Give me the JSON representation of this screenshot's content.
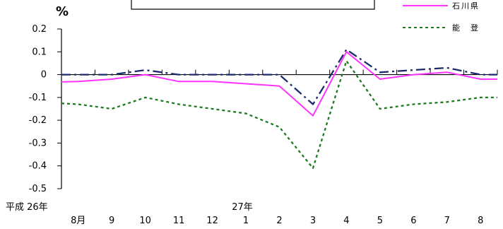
{
  "chart_data": {
    "type": "line",
    "ylabel": "%",
    "ylim": [
      -0.5,
      0.2
    ],
    "yticks": [
      0.2,
      0.1,
      0,
      -0.1,
      -0.2,
      -0.3,
      -0.4,
      -0.5
    ],
    "ytick_labels": [
      "0.2",
      "0.1",
      "0",
      "-0.1",
      "-0.2",
      "-0.3",
      "-0.4",
      "-0.5"
    ],
    "categories": [
      "8月",
      "9",
      "10",
      "11",
      "12",
      "1",
      "2",
      "3",
      "4",
      "5",
      "6",
      "7",
      "8"
    ],
    "year_labels": [
      "平成 26年",
      "27年"
    ],
    "grid": false,
    "legend_position": "top-right",
    "series": [
      {
        "name": "",
        "style": "dash-dot",
        "color": "#1a2a6c",
        "values": [
          0.0,
          0.0,
          0.02,
          0.0,
          0.0,
          0.0,
          0.0,
          -0.13,
          0.11,
          0.01,
          0.02,
          0.03,
          0.0
        ]
      },
      {
        "name": "石川県",
        "style": "solid",
        "color": "#ff33ff",
        "values": [
          -0.03,
          -0.02,
          0.0,
          -0.03,
          -0.03,
          -0.04,
          -0.05,
          -0.18,
          0.1,
          -0.02,
          0.0,
          0.01,
          -0.02
        ]
      },
      {
        "name": "能　登",
        "style": "dotted",
        "color": "#1f7a1f",
        "values": [
          -0.13,
          -0.15,
          -0.1,
          -0.13,
          -0.15,
          -0.17,
          -0.23,
          -0.41,
          0.06,
          -0.15,
          -0.13,
          -0.12,
          -0.1
        ]
      }
    ]
  }
}
